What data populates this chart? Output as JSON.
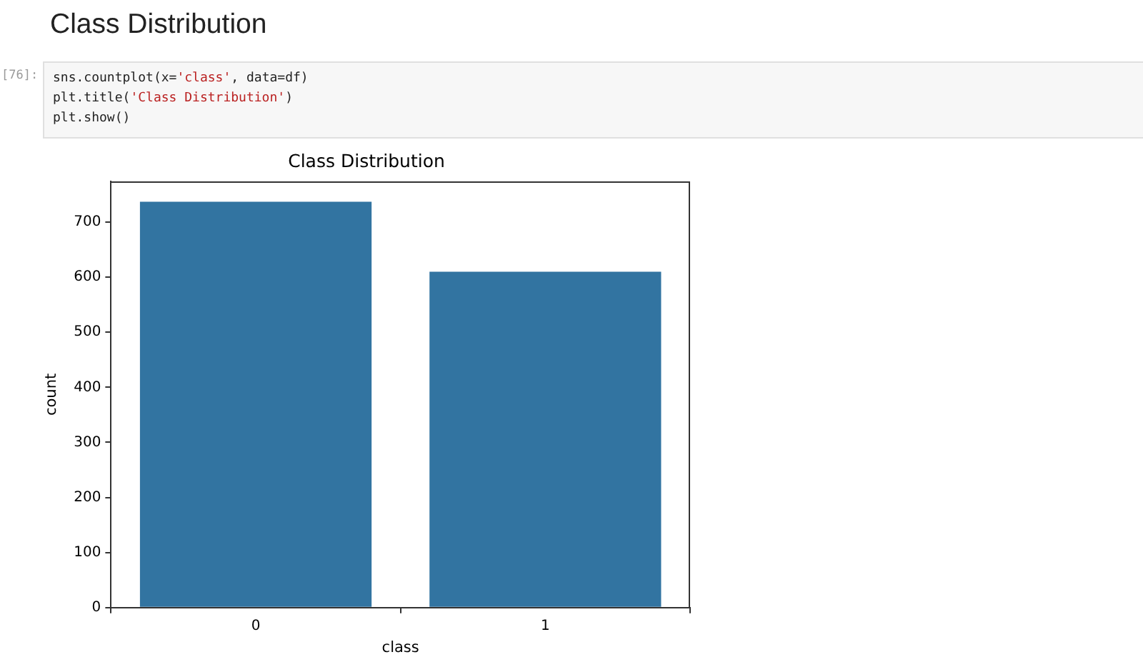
{
  "chart_data": {
    "type": "bar",
    "title": "Class Distribution",
    "xlabel": "class",
    "ylabel": "count",
    "categories": [
      "0",
      "1"
    ],
    "values": [
      737,
      610
    ],
    "color": "#3274a1",
    "ylim": [
      0,
      774
    ],
    "yticks": [
      0,
      100,
      200,
      300,
      400,
      500,
      600,
      700
    ],
    "grid": false,
    "legend": false,
    "annotations": [
      "Class Distribution",
      "[76]:",
      "sns.countplot(x='class', data=df)",
      "plt.title('Class Distribution')",
      "plt.show()"
    ]
  }
}
